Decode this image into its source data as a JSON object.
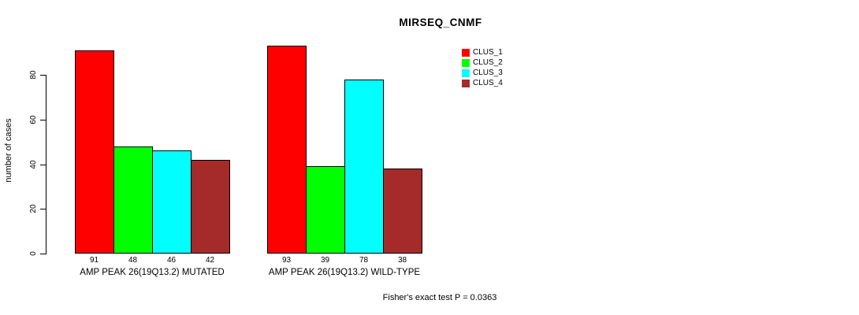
{
  "title": "MIRSEQ_CNMF",
  "footer": "Fisher's exact test P = 0.0363",
  "y_axis": {
    "label": "number of cases",
    "ticks": [
      0,
      20,
      40,
      60,
      80
    ]
  },
  "legend": {
    "position": "top-right",
    "items": [
      {
        "label": "CLUS_1",
        "color": "#ff0000"
      },
      {
        "label": "CLUS_2",
        "color": "#00ff00"
      },
      {
        "label": "CLUS_3",
        "color": "#00ffff"
      },
      {
        "label": "CLUS_4",
        "color": "#a52a2a"
      }
    ]
  },
  "chart_data": {
    "type": "bar",
    "title": "MIRSEQ_CNMF",
    "xlabel": "",
    "ylabel": "number of cases",
    "ylim": [
      0,
      93
    ],
    "yticks": [
      0,
      20,
      40,
      60,
      80
    ],
    "grid": false,
    "legend_position": "top-right",
    "categories": [
      "AMP PEAK 26(19Q13.2) MUTATED",
      "AMP PEAK 26(19Q13.2) WILD-TYPE"
    ],
    "series": [
      {
        "name": "CLUS_1",
        "color": "#ff0000",
        "values": [
          91,
          93
        ]
      },
      {
        "name": "CLUS_2",
        "color": "#00ff00",
        "values": [
          48,
          39
        ]
      },
      {
        "name": "CLUS_3",
        "color": "#00ffff",
        "values": [
          46,
          78
        ]
      },
      {
        "name": "CLUS_4",
        "color": "#a52a2a",
        "values": [
          42,
          38
        ]
      }
    ],
    "bar_value_labels": [
      [
        91,
        48,
        46,
        42
      ],
      [
        93,
        39,
        78,
        38
      ]
    ],
    "annotation": "Fisher's exact test P = 0.0363"
  }
}
